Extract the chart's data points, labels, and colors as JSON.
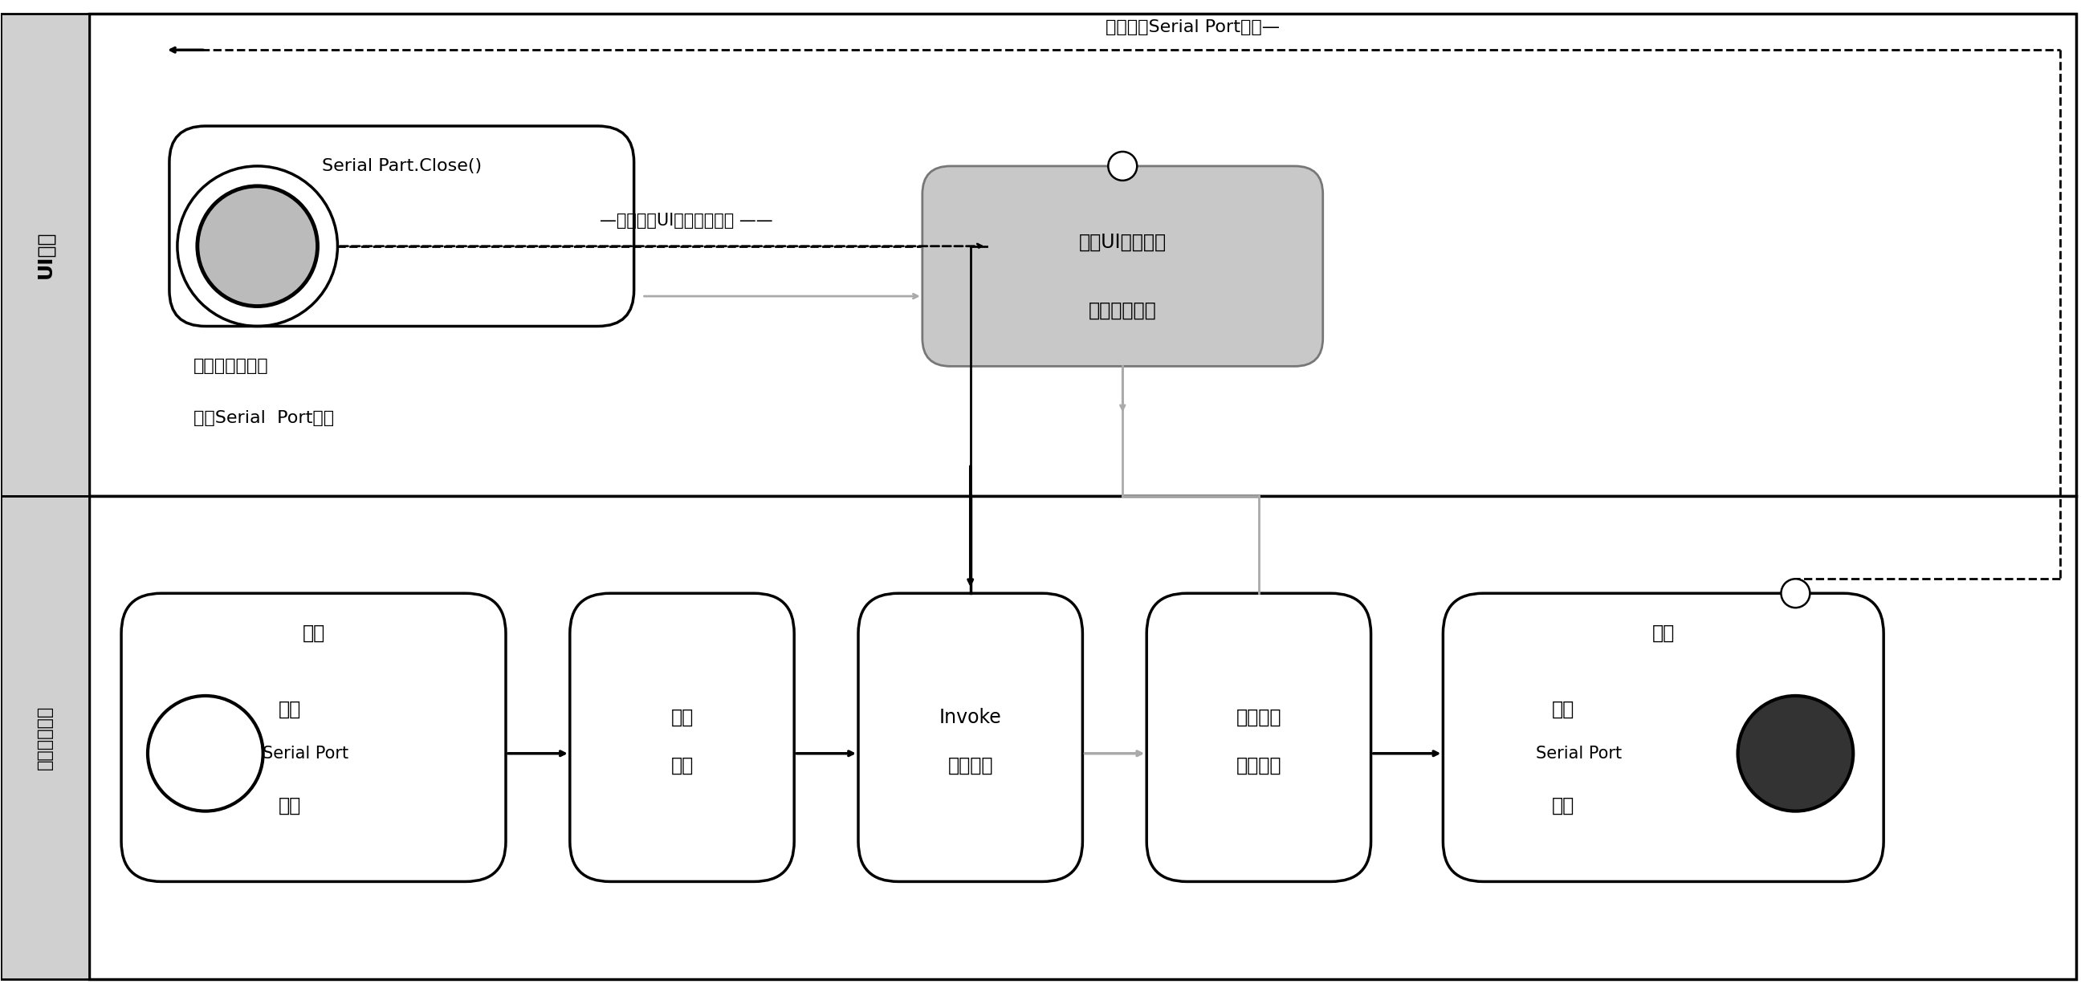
{
  "fig_width": 25.97,
  "fig_height": 12.36,
  "white": "#ffffff",
  "black": "#000000",
  "light_gray": "#c8c8c8",
  "mid_gray": "#aaaaaa",
  "side_gray": "#d0d0d0",
  "top_label": "UI线程",
  "bottom_label": "数据接收线程",
  "top_dashed_label": "无法释放Serial Port占用—",
  "serial_close_text": "Serial Part.Close()",
  "block_text1": "阵塞当前线程，",
  "block_text2": "等待Serial  Port释放",
  "dashed_arrow_label": "—阵塞后，UI所有操作休眠 ——",
  "ui_block_line1": "当前UI线程阵塞",
  "ui_block_line2": "无法执行委托",
  "start_text": "开始",
  "end_text": "结束",
  "occupy_line1": "占用",
  "occupy_line2": "Serial Port",
  "occupy_line3": "对象",
  "read_line1": "读取",
  "read_line2": "数据",
  "invoke_line1": "Invoke",
  "invoke_line2": "界面委托",
  "wait_line1": "等待委托",
  "wait_line2": "执行完毕",
  "release_line1": "释放",
  "release_line2": "Serial Port",
  "release_line3": "对象"
}
